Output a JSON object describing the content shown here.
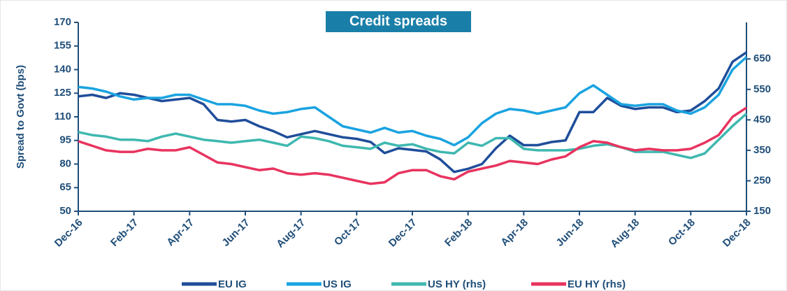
{
  "chart_data": {
    "type": "line",
    "title": "Credit spreads",
    "ylabel": "Spread to Govt (bps)",
    "categories": [
      "Dec-16",
      null,
      null,
      null,
      "Feb-17",
      null,
      null,
      null,
      "Apr-17",
      null,
      null,
      null,
      "Jun-17",
      null,
      null,
      null,
      "Aug-17",
      null,
      null,
      null,
      "Oct-17",
      null,
      null,
      null,
      "Dec-17",
      null,
      null,
      null,
      "Feb-18",
      null,
      null,
      null,
      "Apr-18",
      null,
      null,
      null,
      "Jun-18",
      null,
      null,
      null,
      "Aug-18",
      null,
      null,
      null,
      "Oct-18",
      null,
      null,
      null,
      "Dec-18"
    ],
    "ylim": [
      50,
      170
    ],
    "yticks": [
      50,
      65,
      80,
      95,
      110,
      125,
      140,
      155,
      170
    ],
    "y2lim": [
      150,
      770
    ],
    "y2ticks": [
      150,
      250,
      350,
      450,
      550,
      650
    ],
    "series": [
      {
        "name": "EU IG",
        "color": "#1f4e9a",
        "values": [
          123,
          124,
          122,
          125,
          124,
          122,
          120,
          121,
          122,
          118,
          108,
          107,
          108,
          104,
          101,
          97,
          99,
          101,
          99,
          97,
          96,
          94,
          87,
          90,
          89,
          88,
          83,
          75,
          77,
          80,
          90,
          98,
          92,
          92,
          94,
          95,
          113,
          113,
          122,
          117,
          115,
          116,
          116,
          113,
          114,
          120,
          128,
          145,
          151
        ]
      },
      {
        "name": "US IG",
        "color": "#1aa3e0",
        "values": [
          129,
          128,
          126,
          123,
          121,
          122,
          122,
          124,
          124,
          121,
          118,
          118,
          117,
          114,
          112,
          113,
          115,
          116,
          110,
          104,
          102,
          100,
          103,
          100,
          101,
          98,
          96,
          92,
          97,
          106,
          112,
          115,
          114,
          112,
          114,
          116,
          125,
          130,
          124,
          118,
          117,
          118,
          118,
          114,
          112,
          116,
          124,
          140,
          148
        ]
      },
      {
        "name": "US HY (rhs)",
        "color": "#3fb8b0",
        "axis": "y2",
        "values": [
          410,
          400,
          395,
          385,
          385,
          380,
          395,
          405,
          395,
          385,
          380,
          375,
          380,
          385,
          375,
          365,
          395,
          390,
          380,
          365,
          360,
          355,
          375,
          365,
          370,
          355,
          345,
          340,
          375,
          365,
          390,
          390,
          355,
          350,
          350,
          350,
          355,
          365,
          370,
          360,
          345,
          345,
          345,
          335,
          325,
          340,
          385,
          430,
          470
        ]
      },
      {
        "name": "EU HY (rhs)",
        "color": "#e8335f",
        "axis": "y2",
        "values": [
          380,
          365,
          350,
          345,
          345,
          355,
          350,
          350,
          360,
          335,
          310,
          305,
          295,
          285,
          290,
          275,
          270,
          275,
          270,
          260,
          250,
          240,
          245,
          275,
          285,
          285,
          265,
          255,
          280,
          290,
          300,
          315,
          310,
          305,
          320,
          330,
          360,
          380,
          375,
          360,
          350,
          355,
          350,
          350,
          355,
          375,
          400,
          460,
          490
        ]
      }
    ]
  }
}
